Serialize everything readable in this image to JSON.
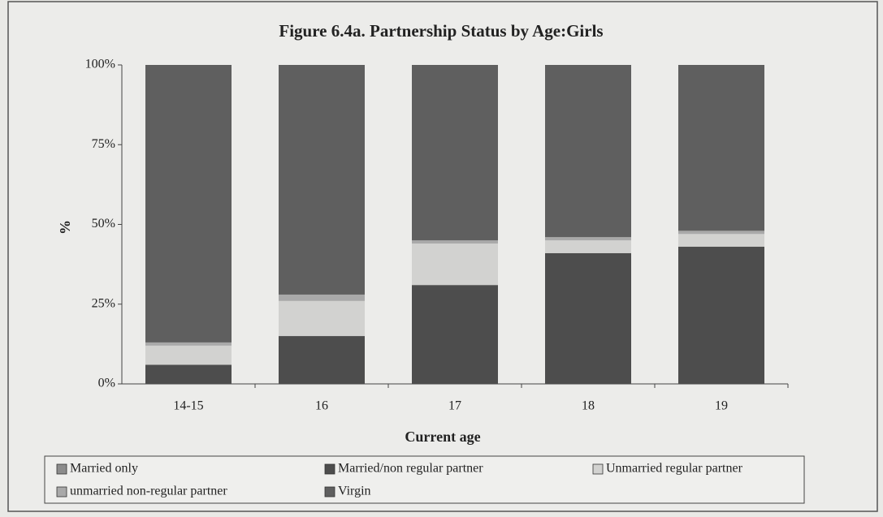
{
  "chart_data": {
    "type": "stacked_bar",
    "title": "Figure 6.4a.  Partnership Status by Age:Girls",
    "x_label": "Current age",
    "y_label": "%",
    "categories": [
      "14-15",
      "16",
      "17",
      "18",
      "19"
    ],
    "series": [
      {
        "name": "Married only",
        "color": "#8c8c8c",
        "values": [
          0,
          0,
          0,
          0,
          0
        ]
      },
      {
        "name": "Married/non regular partner",
        "color": "#4d4d4d",
        "values": [
          6,
          15,
          31,
          41,
          43
        ]
      },
      {
        "name": "Unmarried regular partner",
        "color": "#d2d2d0",
        "values": [
          6,
          11,
          13,
          4,
          4
        ]
      },
      {
        "name": "unmarried non-regular partner",
        "color": "#a9a9a9",
        "values": [
          1,
          2,
          1,
          1,
          1
        ]
      },
      {
        "name": "Virgin",
        "color": "#5f5f5f",
        "values": [
          87,
          72,
          55,
          54,
          52
        ]
      }
    ],
    "ylim": [
      0,
      100
    ],
    "yticks": [
      {
        "value": 0,
        "label": "0%"
      },
      {
        "value": 25,
        "label": "25%"
      },
      {
        "value": 50,
        "label": "50%"
      },
      {
        "value": 75,
        "label": "75%"
      },
      {
        "value": 100,
        "label": "100%"
      }
    ]
  }
}
